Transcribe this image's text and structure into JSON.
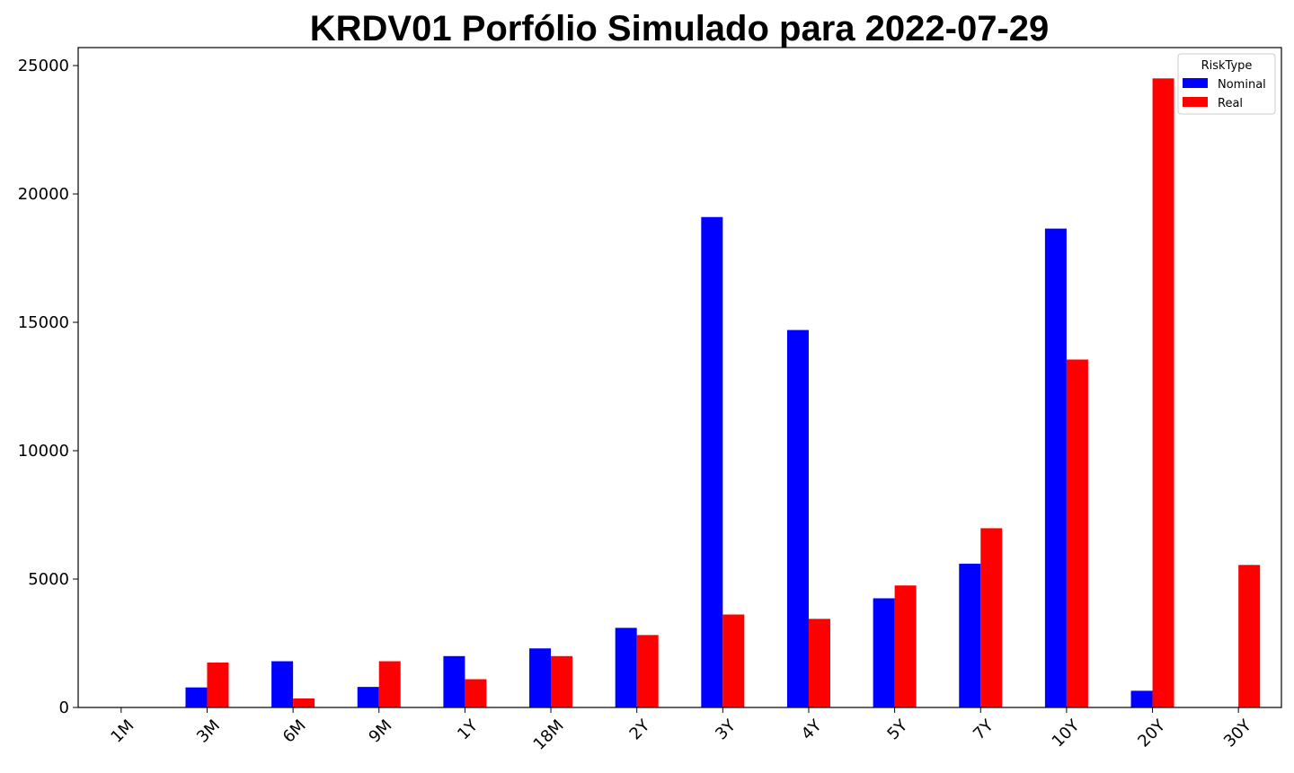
{
  "chart_data": {
    "type": "bar",
    "title": "KRDV01 Porfólio Simulado para 2022-07-29",
    "xlabel": "",
    "ylabel": "",
    "categories": [
      "1M",
      "3M",
      "6M",
      "9M",
      "1Y",
      "18M",
      "2Y",
      "3Y",
      "4Y",
      "5Y",
      "7Y",
      "10Y",
      "20Y",
      "30Y"
    ],
    "series": [
      {
        "name": "Nominal",
        "color": "#0000ff",
        "values": [
          0,
          780,
          1800,
          800,
          2000,
          2300,
          3100,
          19100,
          14700,
          4250,
          5600,
          18650,
          650,
          0
        ]
      },
      {
        "name": "Real",
        "color": "#ff0000",
        "values": [
          0,
          1750,
          350,
          1800,
          1100,
          2000,
          2820,
          3620,
          3450,
          4750,
          6980,
          13550,
          24500,
          5550
        ]
      }
    ],
    "ylim": [
      0,
      25700
    ],
    "yticks": [
      0,
      5000,
      10000,
      15000,
      20000,
      25000
    ],
    "grid": false,
    "legend": {
      "title": "RiskType",
      "placement": "upper-right"
    }
  }
}
